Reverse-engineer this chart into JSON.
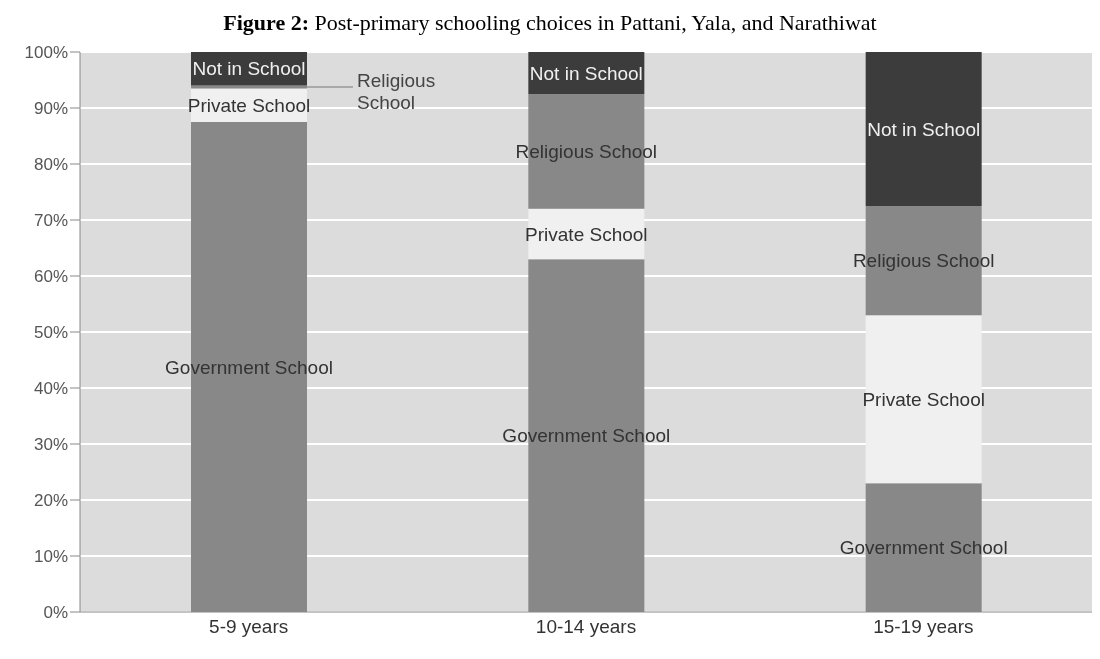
{
  "chart_data": {
    "type": "bar",
    "title": "Figure 2: Post-primary schooling choices in Pattani, Yala, and Narathiwat",
    "categories": [
      "5-9 years",
      "10-14 years",
      "15-19 years"
    ],
    "stacked": true,
    "series": [
      {
        "name": "Government School",
        "color": "#888888",
        "values": [
          87.5,
          63,
          23
        ]
      },
      {
        "name": "Private School",
        "color": "#f0f0f0",
        "values": [
          6,
          9,
          30
        ]
      },
      {
        "name": "Religious School",
        "color": "#888888",
        "values": [
          0.5,
          20.5,
          19.5
        ]
      },
      {
        "name": "Not in School",
        "color": "#3c3c3c",
        "values": [
          6,
          7.5,
          27.5
        ]
      }
    ],
    "ylim": [
      0,
      100
    ],
    "yticks": [
      {
        "value": 0,
        "label": "0%"
      },
      {
        "value": 10,
        "label": "10%"
      },
      {
        "value": 20,
        "label": "20%"
      },
      {
        "value": 30,
        "label": "30%"
      },
      {
        "value": 40,
        "label": "40%"
      },
      {
        "value": 50,
        "label": "50%"
      },
      {
        "value": 60,
        "label": "60%"
      },
      {
        "value": 70,
        "label": "70%"
      },
      {
        "value": 80,
        "label": "80%"
      },
      {
        "value": 90,
        "label": "90%"
      },
      {
        "value": 100,
        "label": "100%"
      }
    ],
    "grid": "y"
  }
}
